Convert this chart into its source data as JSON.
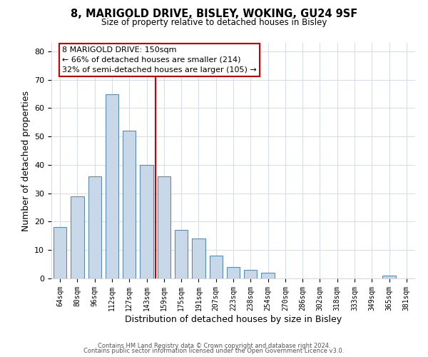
{
  "title": "8, MARIGOLD DRIVE, BISLEY, WOKING, GU24 9SF",
  "subtitle": "Size of property relative to detached houses in Bisley",
  "xlabel": "Distribution of detached houses by size in Bisley",
  "ylabel": "Number of detached properties",
  "bar_color": "#c8d8e8",
  "bar_edge_color": "#5b8db0",
  "categories": [
    "64sqm",
    "80sqm",
    "96sqm",
    "112sqm",
    "127sqm",
    "143sqm",
    "159sqm",
    "175sqm",
    "191sqm",
    "207sqm",
    "223sqm",
    "238sqm",
    "254sqm",
    "270sqm",
    "286sqm",
    "302sqm",
    "318sqm",
    "333sqm",
    "349sqm",
    "365sqm",
    "381sqm"
  ],
  "values": [
    18,
    29,
    36,
    65,
    52,
    40,
    36,
    17,
    14,
    8,
    4,
    3,
    2,
    0,
    0,
    0,
    0,
    0,
    0,
    1,
    0
  ],
  "ylim": [
    0,
    83
  ],
  "yticks": [
    0,
    10,
    20,
    30,
    40,
    50,
    60,
    70,
    80
  ],
  "vline_color": "#cc0000",
  "annotation_text": "8 MARIGOLD DRIVE: 150sqm\n← 66% of detached houses are smaller (214)\n32% of semi-detached houses are larger (105) →",
  "annotation_box_color": "#ffffff",
  "annotation_box_edge_color": "#cc0000",
  "footer1": "Contains HM Land Registry data © Crown copyright and database right 2024.",
  "footer2": "Contains public sector information licensed under the Open Government Licence v3.0.",
  "background_color": "#ffffff",
  "grid_color": "#d8dde8"
}
